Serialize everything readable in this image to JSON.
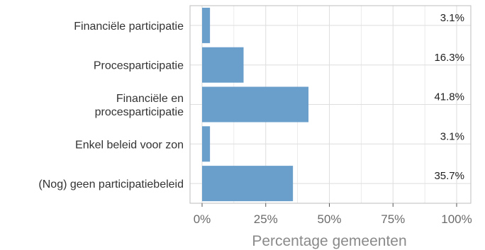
{
  "chart_data": {
    "type": "bar",
    "orientation": "horizontal",
    "categories": [
      [
        "Financiële participatie"
      ],
      [
        "Procesparticipatie"
      ],
      [
        "Financiële en",
        "procesparticipatie"
      ],
      [
        "Enkel beleid voor zon"
      ],
      [
        "(Nog) geen participatiebeleid"
      ]
    ],
    "values": [
      3.1,
      16.3,
      41.8,
      3.1,
      35.7
    ],
    "value_labels": [
      "3.1%",
      "16.3%",
      "41.8%",
      "3.1%",
      "35.7%"
    ],
    "xlabel": "Percentage gemeenten",
    "xlim": [
      0,
      100
    ],
    "x_ticks": [
      0,
      25,
      50,
      75,
      100
    ],
    "x_tick_labels": [
      "0%",
      "25%",
      "50%",
      "75%",
      "100%"
    ],
    "grid": true,
    "bar_color": "#6a9fcc",
    "grid_color": "#dedede"
  }
}
